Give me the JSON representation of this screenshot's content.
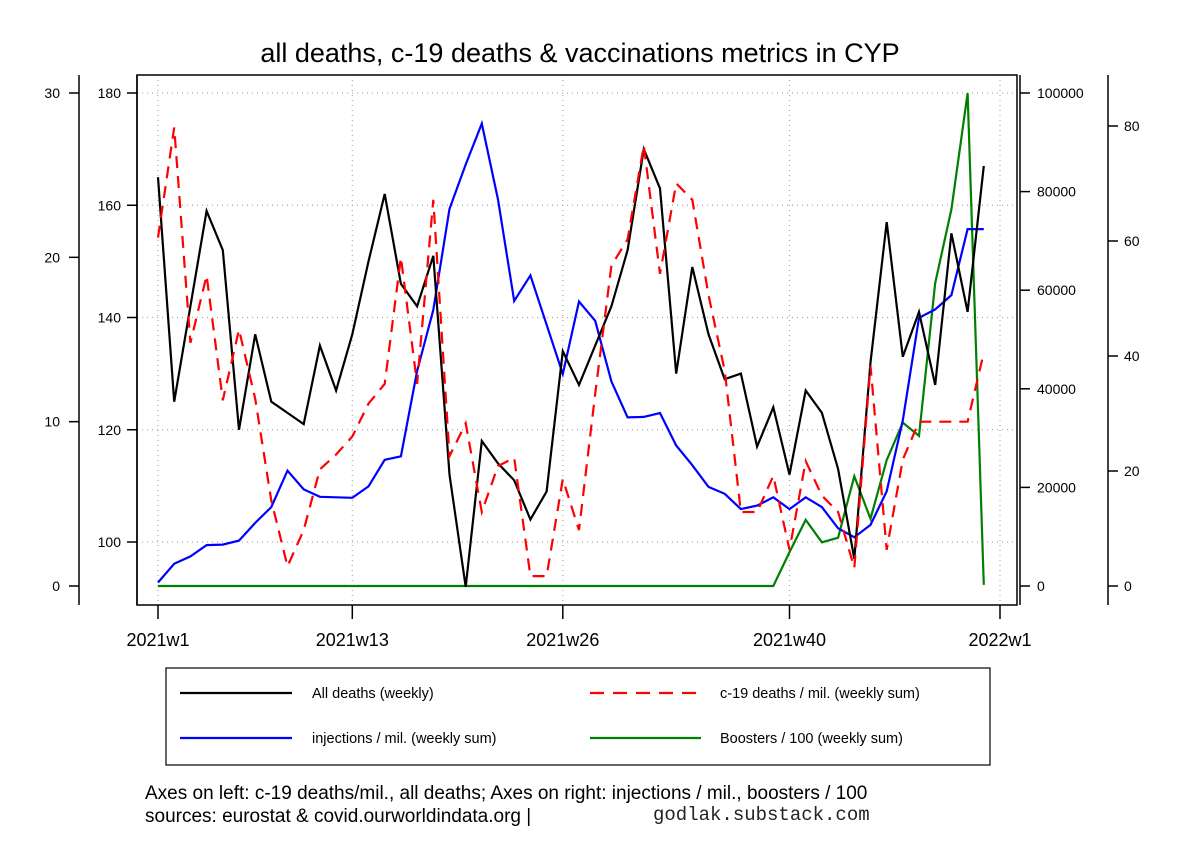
{
  "chart_data": {
    "type": "line",
    "title": "all deaths, c-19 deaths & vaccinations metrics in CYP",
    "x_tick_labels": [
      "2021w1",
      "2021w13",
      "2021w26",
      "2021w40",
      "2022w1"
    ],
    "x_tick_weeks": [
      1,
      13,
      26,
      40,
      53
    ],
    "x_range_weeks": [
      1,
      53
    ],
    "grid": true,
    "axes": {
      "left_outer": {
        "label": "c-19 deaths / mil.",
        "range": [
          0,
          30
        ],
        "ticks": [
          0,
          10,
          20,
          30
        ]
      },
      "left_inner": {
        "label": "all deaths",
        "range": [
          100,
          180
        ],
        "ticks": [
          100,
          120,
          140,
          160,
          180
        ]
      },
      "right_inner": {
        "label": "injections / mil.",
        "range": [
          0,
          100000
        ],
        "ticks": [
          0,
          20000,
          40000,
          60000,
          80000,
          100000
        ]
      },
      "right_outer": {
        "label": "boosters / 100",
        "range": [
          0,
          80
        ],
        "ticks": [
          0,
          20,
          40,
          60,
          80
        ]
      }
    },
    "series": [
      {
        "name": "All deaths (weekly)",
        "axis": "left_inner",
        "color": "#000000",
        "dash": "solid",
        "start_week": 1,
        "values": [
          165,
          125,
          142,
          159,
          152,
          120,
          137,
          125,
          123,
          121,
          135,
          127,
          137,
          150,
          162,
          146,
          142,
          151,
          112,
          92,
          118,
          114,
          111,
          104,
          109,
          134,
          128,
          135,
          142,
          152,
          170,
          163,
          130,
          149,
          137,
          129,
          130,
          117,
          124,
          112,
          127,
          123,
          113,
          97,
          132,
          157,
          133,
          141,
          128,
          155,
          141,
          167
        ]
      },
      {
        "name": "c-19 deaths / mil. (weekly sum)",
        "axis": "left_outer",
        "color": "#ff0000",
        "dash": "dashed",
        "start_week": 1,
        "values": [
          21.2,
          27.9,
          14.8,
          18.9,
          11.3,
          15.6,
          11.4,
          5.2,
          1.2,
          3.4,
          7.1,
          8.0,
          9.1,
          11.1,
          12.3,
          20.0,
          12.3,
          23.5,
          7.9,
          9.9,
          4.5,
          7.3,
          7.8,
          0.6,
          0.6,
          6.5,
          3.4,
          11.7,
          19.5,
          21.1,
          26.8,
          19.0,
          24.5,
          23.5,
          17.7,
          13.1,
          4.5,
          4.5,
          6.7,
          2.2,
          7.6,
          5.5,
          4.5,
          1.1,
          13.4,
          2.2,
          7.7,
          10.0,
          10.0,
          10.0,
          10.0,
          14.2
        ]
      },
      {
        "name": "injections / mil. (weekly sum)",
        "axis": "right_inner",
        "color": "#0000ff",
        "dash": "solid",
        "start_week": 1,
        "values": [
          700,
          4500,
          6000,
          8300,
          8400,
          9200,
          12800,
          16000,
          23400,
          19600,
          18100,
          18000,
          17900,
          20200,
          25600,
          26300,
          43600,
          56000,
          76500,
          85500,
          93800,
          78400,
          57800,
          63000,
          53000,
          43000,
          57700,
          53800,
          41500,
          34200,
          34300,
          35100,
          28500,
          24500,
          20100,
          18700,
          15600,
          16300,
          18000,
          15600,
          18000,
          16000,
          11700,
          9900,
          12400,
          19200,
          33600,
          54400,
          56100,
          59000,
          72400,
          72400
        ]
      },
      {
        "name": "Boosters / 100 (weekly sum)",
        "axis": "right_outer",
        "color": "#008000",
        "dash": "solid",
        "start_week": 1,
        "values": [
          0,
          0,
          0,
          0,
          0,
          0,
          0,
          0,
          0,
          0,
          0,
          0,
          0,
          0,
          0,
          0,
          0,
          0,
          0,
          0,
          0,
          0,
          0,
          0,
          0,
          0,
          0,
          0,
          0,
          0,
          0,
          0,
          0,
          0,
          0,
          0,
          0,
          0,
          0,
          5.9,
          11.5,
          7.6,
          8.4,
          19.1,
          11.7,
          21.9,
          28.4,
          26.1,
          52.7,
          65.5,
          85.7,
          0.2
        ]
      }
    ],
    "legend": {
      "placement": "bottom",
      "entries": [
        {
          "label": "All deaths (weekly)",
          "color": "#000000",
          "dash": "solid"
        },
        {
          "label": "c-19 deaths / mil. (weekly sum)",
          "color": "#ff0000",
          "dash": "dashed"
        },
        {
          "label": "injections / mil. (weekly sum)",
          "color": "#0000ff",
          "dash": "solid"
        },
        {
          "label": "Boosters / 100 (weekly sum)",
          "color": "#008000",
          "dash": "solid"
        }
      ]
    },
    "caption_line1": "Axes on left: c-19 deaths/mil., all deaths; Axes on right: injections / mil., boosters / 100",
    "caption_line2": "sources: eurostat & covid.ourworldindata.org |",
    "caption_site": "godlak.substack.com"
  }
}
